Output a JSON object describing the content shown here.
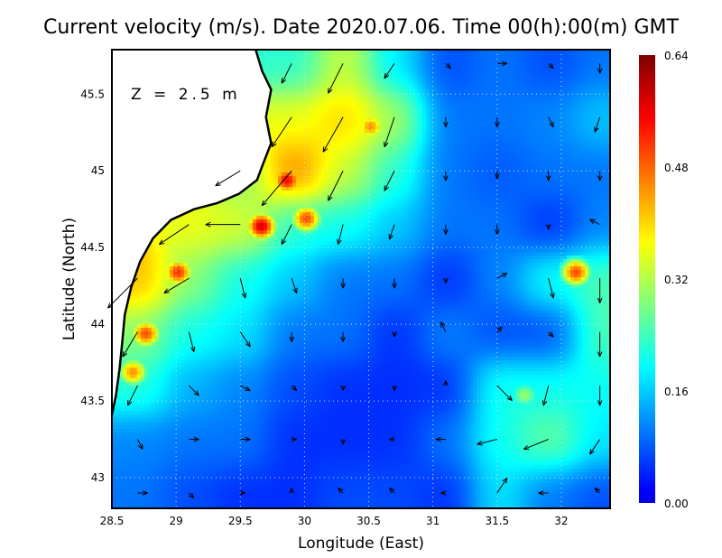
{
  "chart_data": {
    "type": "heatmap",
    "title": "Current velocity (m/s). Date 2020.07.06. Time 00(h):00(m) GMT",
    "annotation": "Z = 2.5 m",
    "xlabel": "Longitude (East)",
    "ylabel": "Latitude (North)",
    "xlim": [
      28.5,
      32.38
    ],
    "ylim": [
      42.8,
      45.79
    ],
    "xticks": [
      "28.5",
      "29",
      "29.5",
      "30",
      "30.5",
      "31",
      "31.5",
      "32"
    ],
    "xtick_values": [
      28.5,
      29,
      29.5,
      30,
      30.5,
      31,
      31.5,
      32
    ],
    "yticks": [
      "43",
      "43.5",
      "44",
      "44.5",
      "45",
      "45.5"
    ],
    "ytick_values": [
      43,
      43.5,
      44,
      44.5,
      45,
      45.5
    ],
    "grid": true,
    "colorbar": {
      "range": [
        0,
        0.64
      ],
      "ticks": [
        "0.00",
        "0.16",
        "0.32",
        "0.48",
        "0.64"
      ],
      "tick_values": [
        0,
        0.16,
        0.32,
        0.48,
        0.64
      ],
      "colormap": "jet",
      "placement": "right"
    },
    "vector_grid": {
      "lon": [
        28.7,
        29.1,
        29.5,
        29.9,
        30.3,
        30.7,
        31.1,
        31.5,
        31.9,
        32.3
      ],
      "lat": [
        45.7,
        45.35,
        45.0,
        44.65,
        44.3,
        43.95,
        43.6,
        43.25,
        42.9
      ],
      "uv": [
        [
          null,
          null,
          null,
          [
            -0.1,
            -0.2
          ],
          [
            -0.15,
            -0.3
          ],
          [
            -0.1,
            -0.15
          ],
          [
            0.05,
            -0.05
          ],
          [
            0.1,
            0
          ],
          [
            0.05,
            -0.05
          ],
          [
            0,
            -0.1
          ]
        ],
        [
          null,
          null,
          null,
          [
            -0.2,
            -0.3
          ],
          [
            -0.2,
            -0.35
          ],
          [
            -0.1,
            -0.3
          ],
          [
            0,
            -0.1
          ],
          [
            0,
            -0.1
          ],
          [
            0.05,
            -0.1
          ],
          [
            -0.05,
            -0.15
          ]
        ],
        [
          null,
          null,
          [
            -0.25,
            -0.15
          ],
          [
            -0.3,
            -0.35
          ],
          [
            -0.15,
            -0.3
          ],
          [
            -0.1,
            -0.2
          ],
          [
            0,
            -0.1
          ],
          [
            0,
            -0.08
          ],
          [
            0,
            -0.1
          ],
          [
            0,
            -0.1
          ]
        ],
        [
          null,
          [
            -0.3,
            -0.2
          ],
          [
            -0.35,
            0
          ],
          [
            -0.1,
            -0.2
          ],
          [
            -0.05,
            -0.2
          ],
          [
            -0.05,
            -0.15
          ],
          [
            0,
            -0.1
          ],
          [
            0,
            -0.1
          ],
          [
            0,
            -0.05
          ],
          [
            -0.1,
            0.05
          ]
        ],
        [
          [
            -0.3,
            -0.3
          ],
          [
            -0.25,
            -0.15
          ],
          [
            0.05,
            -0.2
          ],
          [
            0.05,
            -0.15
          ],
          [
            0,
            -0.1
          ],
          [
            0,
            -0.1
          ],
          [
            0,
            -0.05
          ],
          [
            0.1,
            0.05
          ],
          [
            0.05,
            -0.2
          ],
          [
            0,
            -0.25
          ]
        ],
        [
          [
            -0.15,
            -0.25
          ],
          [
            0.05,
            -0.2
          ],
          [
            0.1,
            -0.15
          ],
          [
            0,
            -0.1
          ],
          [
            0,
            -0.1
          ],
          [
            0,
            -0.05
          ],
          [
            -0.05,
            0.1
          ],
          [
            0.05,
            0.05
          ],
          [
            0.05,
            -0.05
          ],
          [
            0,
            -0.25
          ]
        ],
        [
          [
            -0.1,
            -0.2
          ],
          [
            0.1,
            -0.1
          ],
          [
            0.1,
            -0.05
          ],
          [
            0.05,
            -0.05
          ],
          [
            0,
            -0.05
          ],
          [
            0,
            -0.05
          ],
          [
            0,
            0.05
          ],
          [
            0.15,
            -0.15
          ],
          [
            -0.05,
            -0.2
          ],
          [
            0,
            -0.2
          ]
        ],
        [
          [
            0.05,
            -0.1
          ],
          [
            0.1,
            0
          ],
          [
            0.1,
            0
          ],
          [
            0.05,
            0
          ],
          [
            0,
            -0.05
          ],
          [
            -0.05,
            0
          ],
          [
            -0.1,
            0
          ],
          [
            -0.2,
            -0.05
          ],
          [
            -0.25,
            -0.1
          ],
          [
            -0.1,
            -0.15
          ]
        ],
        [
          [
            0.1,
            0
          ],
          [
            0.05,
            -0.05
          ],
          [
            0.05,
            0
          ],
          [
            0,
            0.05
          ],
          [
            -0.05,
            0.05
          ],
          [
            -0.05,
            0.05
          ],
          [
            -0.05,
            0
          ],
          [
            0.1,
            0.15
          ],
          [
            -0.1,
            0
          ],
          [
            -0.05,
            0.05
          ]
        ]
      ]
    },
    "speed_maxima": [
      {
        "lon": 29.65,
        "lat": 44.65,
        "speed": 0.58
      },
      {
        "lon": 29.85,
        "lat": 44.95,
        "speed": 0.55
      },
      {
        "lon": 29.0,
        "lat": 44.35,
        "speed": 0.52
      },
      {
        "lon": 30.0,
        "lat": 44.7,
        "speed": 0.5
      },
      {
        "lon": 30.5,
        "lat": 45.3,
        "speed": 0.45
      },
      {
        "lon": 32.1,
        "lat": 44.35,
        "speed": 0.5
      },
      {
        "lon": 28.75,
        "lat": 43.95,
        "speed": 0.5
      },
      {
        "lon": 28.65,
        "lat": 43.7,
        "speed": 0.45
      },
      {
        "lon": 31.7,
        "lat": 43.55,
        "speed": 0.3
      }
    ],
    "coastline": [
      [
        29.62,
        45.79
      ],
      [
        29.67,
        45.65
      ],
      [
        29.74,
        45.53
      ],
      [
        29.7,
        45.35
      ],
      [
        29.74,
        45.18
      ],
      [
        29.67,
        45.03
      ],
      [
        29.63,
        44.94
      ],
      [
        29.49,
        44.85
      ],
      [
        29.32,
        44.79
      ],
      [
        29.14,
        44.75
      ],
      [
        28.96,
        44.68
      ],
      [
        28.82,
        44.56
      ],
      [
        28.72,
        44.41
      ],
      [
        28.65,
        44.24
      ],
      [
        28.6,
        44.06
      ],
      [
        28.58,
        43.88
      ],
      [
        28.56,
        43.71
      ],
      [
        28.53,
        43.53
      ],
      [
        28.5,
        43.41
      ]
    ]
  }
}
